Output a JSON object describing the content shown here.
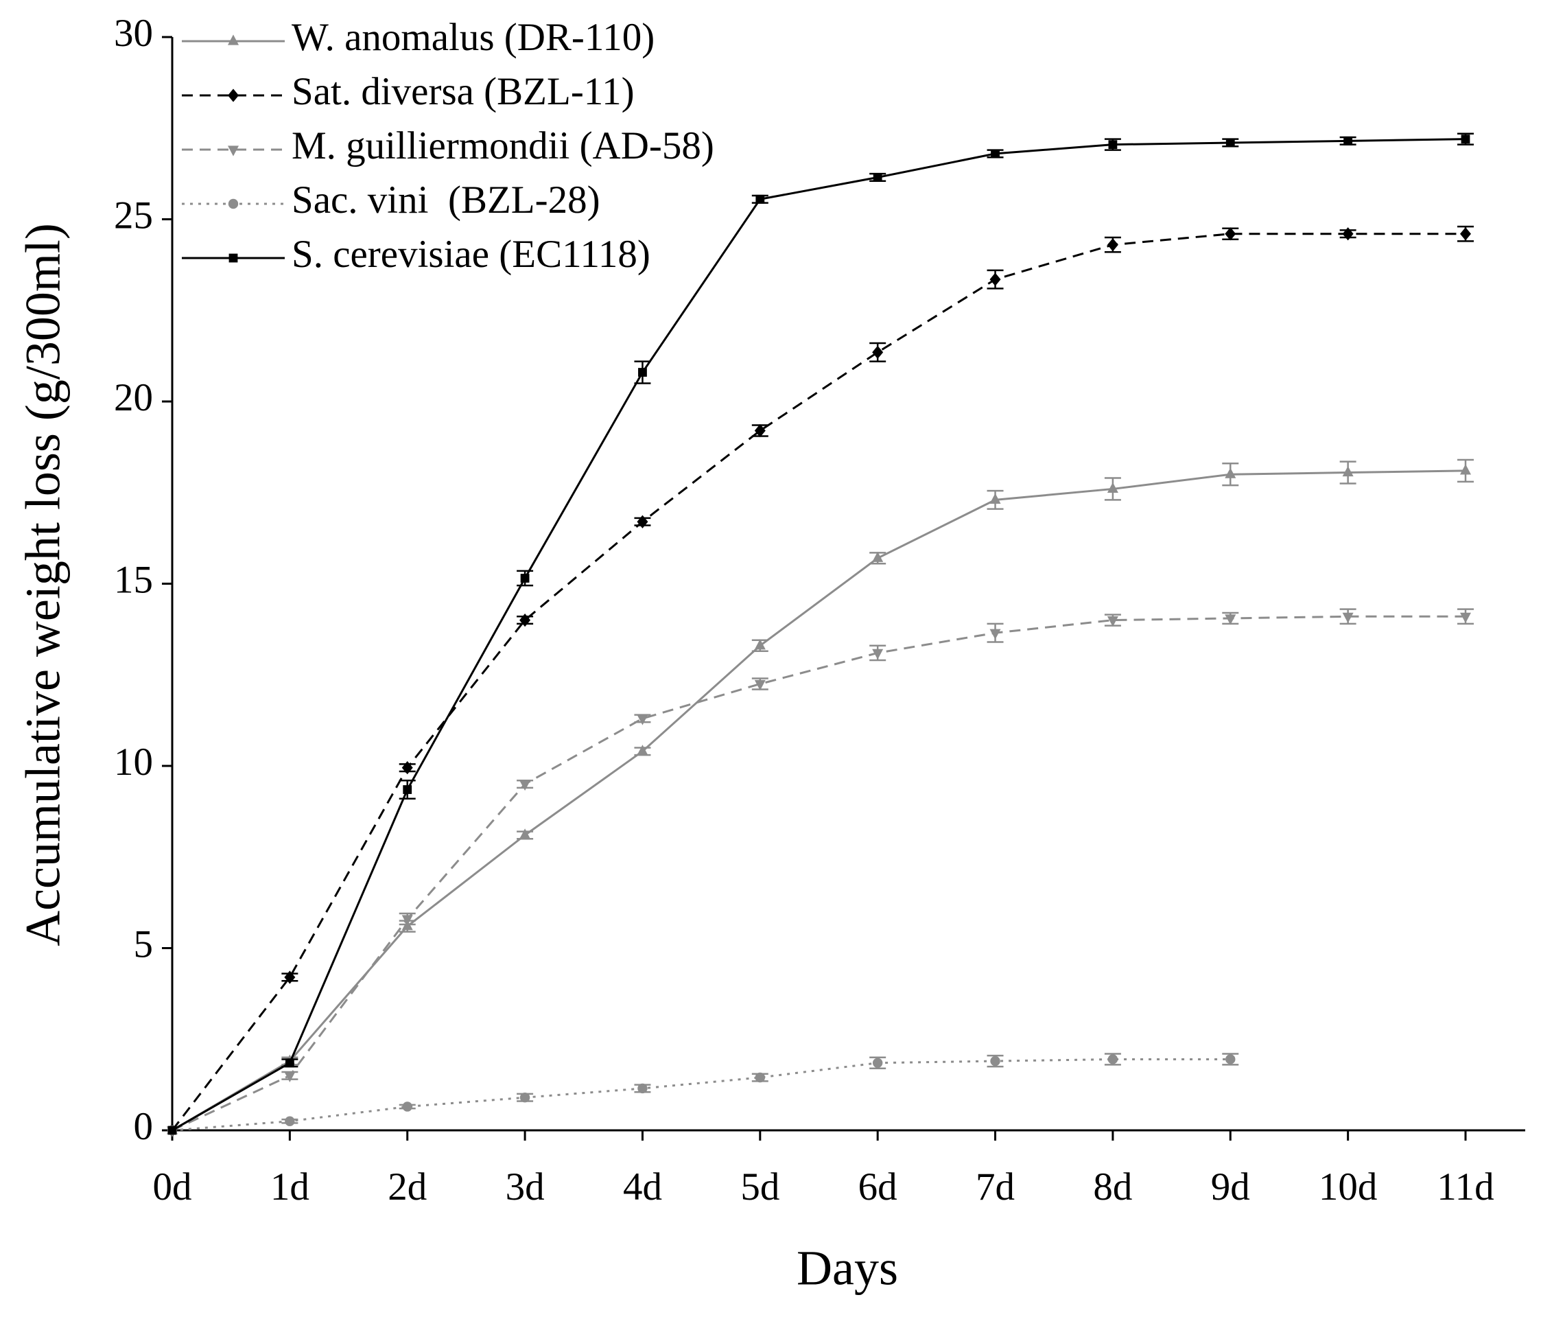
{
  "chart_data": {
    "type": "line",
    "xlabel": "Days",
    "ylabel": "Accumulative weight loss (g/300ml)",
    "categories": [
      "0d",
      "1d",
      "2d",
      "3d",
      "4d",
      "5d",
      "6d",
      "7d",
      "8d",
      "9d",
      "10d",
      "11d"
    ],
    "ylim": [
      0,
      30
    ],
    "yticks": [
      0,
      5,
      10,
      15,
      20,
      25,
      30
    ],
    "legend": "top-left",
    "series": [
      {
        "name": "W. anomalus (DR-110)",
        "color": "#8c8c8c",
        "dash": "solid",
        "marker": "triangle-up",
        "values": [
          0,
          1.9,
          5.6,
          8.1,
          10.4,
          13.3,
          15.7,
          17.3,
          17.6,
          18.0,
          18.05,
          18.1
        ],
        "errors": [
          0,
          0.1,
          0.15,
          0.1,
          0.1,
          0.15,
          0.15,
          0.25,
          0.3,
          0.3,
          0.3,
          0.3
        ]
      },
      {
        "name": "Sat. diversa (BZL-11)",
        "color": "#000000",
        "dash": "dashed",
        "marker": "diamond",
        "values": [
          0,
          4.2,
          9.95,
          14.0,
          16.7,
          19.2,
          21.35,
          23.35,
          24.3,
          24.6,
          24.6,
          24.6
        ],
        "errors": [
          0,
          0.1,
          0.1,
          0.1,
          0.1,
          0.15,
          0.25,
          0.25,
          0.2,
          0.15,
          0.1,
          0.2
        ]
      },
      {
        "name": "M. guilliermondii (AD-58)",
        "color": "#8c8c8c",
        "dash": "dashed",
        "marker": "triangle-down",
        "values": [
          0,
          1.5,
          5.8,
          9.5,
          11.3,
          12.25,
          13.1,
          13.65,
          14.0,
          14.05,
          14.1,
          14.1
        ],
        "errors": [
          0,
          0.1,
          0.15,
          0.1,
          0.1,
          0.15,
          0.2,
          0.25,
          0.15,
          0.15,
          0.2,
          0.2
        ]
      },
      {
        "name": "Sac. vini  (BZL-28)",
        "color": "#8c8c8c",
        "dash": "dotted",
        "marker": "circle",
        "values": [
          0,
          0.25,
          0.65,
          0.9,
          1.15,
          1.45,
          1.85,
          1.9,
          1.95,
          1.95,
          null,
          null
        ],
        "errors": [
          0,
          0.05,
          0.05,
          0.1,
          0.1,
          0.1,
          0.15,
          0.15,
          0.15,
          0.15,
          null,
          null
        ]
      },
      {
        "name": "S. cerevisiae (EC1118)",
        "color": "#000000",
        "dash": "solid",
        "marker": "square",
        "values": [
          0,
          1.85,
          9.35,
          15.15,
          20.8,
          25.55,
          26.15,
          26.8,
          27.05,
          27.1,
          27.15,
          27.2
        ],
        "errors": [
          0,
          0.1,
          0.25,
          0.2,
          0.3,
          0.1,
          0.1,
          0.1,
          0.15,
          0.1,
          0.1,
          0.15
        ]
      }
    ]
  }
}
